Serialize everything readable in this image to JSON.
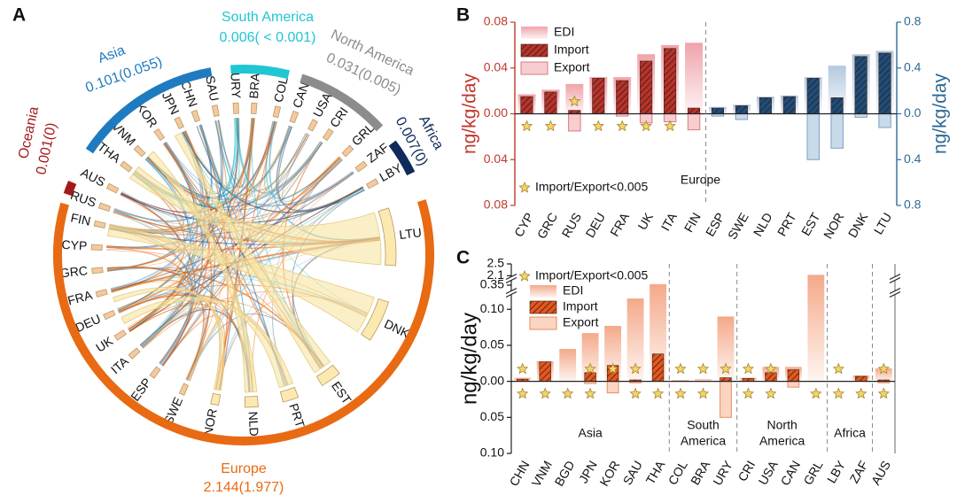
{
  "panel_labels": [
    "A",
    "B",
    "C"
  ],
  "chord": {
    "regions": [
      {
        "name": "Oceania",
        "label": "0.001(0)",
        "color": "#a5191c"
      },
      {
        "name": "Asia",
        "label": "0.101(0.055)",
        "color": "#1f7bc0"
      },
      {
        "name": "South America",
        "label": "0.006( < 0.001)",
        "color": "#1fc6d4"
      },
      {
        "name": "North America",
        "label": "0.031(0.005)",
        "color": "#8c8c8c"
      },
      {
        "name": "Africa",
        "label": "0.007(0)",
        "color": "#0f2a5c"
      },
      {
        "name": "Europe",
        "label": "2.144(1.977)",
        "color": "#e86a12"
      }
    ],
    "countries": [
      "LTU",
      "DNK",
      "EST",
      "PRT",
      "NLD",
      "NOR",
      "SWE",
      "ESP",
      "ITA",
      "UK",
      "DEU",
      "FRA",
      "GRC",
      "CYP",
      "FIN",
      "RUS",
      "AUS",
      "THA",
      "VNM",
      "KOR",
      "JPN",
      "CHN",
      "SAU",
      "URY",
      "BRA",
      "COL",
      "CAN",
      "USA",
      "CRI",
      "GRL",
      "ZAF",
      "LBY"
    ]
  },
  "chart_data": [
    {
      "type": "bar",
      "categories": [
        "CYP",
        "GRC",
        "RUS",
        "DEU",
        "FRA",
        "UK",
        "ITA",
        "FIN",
        "ESP",
        "SWE",
        "NLD",
        "PRT",
        "EST",
        "NOR",
        "DNK",
        "LTU"
      ],
      "category_axis": [
        "y",
        "y",
        "y",
        "y",
        "y",
        "y",
        "y",
        "y",
        "y2",
        "y2",
        "y2",
        "y2",
        "y2",
        "y2",
        "y2",
        "y2"
      ],
      "series": [
        {
          "name": "EDI",
          "color": "#f0a3aa",
          "color_y2": "#b3c8df",
          "values": [
            0.017,
            0.021,
            0.026,
            0.032,
            0.032,
            0.052,
            0.06,
            0.062,
            0.06,
            0.08,
            0.15,
            0.16,
            0.32,
            0.42,
            0.52,
            0.55
          ]
        },
        {
          "name": "Import",
          "color": "#b7332c",
          "color_y2": "#1f4e7a",
          "hatch": true,
          "values": [
            0.015,
            0.019,
            0.003,
            0.031,
            0.029,
            0.046,
            0.057,
            0.005,
            0.05,
            0.07,
            0.14,
            0.15,
            0.31,
            0.14,
            0.5,
            0.53
          ]
        },
        {
          "name": "Export",
          "color": "#f7cdd0",
          "color_y2": "#c9daeb",
          "values": [
            0,
            0,
            -0.015,
            0,
            -0.002,
            -0.008,
            -0.007,
            -0.014,
            -0.02,
            -0.05,
            0,
            0,
            -0.4,
            -0.3,
            -0.03,
            -0.12
          ]
        }
      ],
      "ylabel": "ng/kg/day",
      "y2label": "ng/kg/day",
      "ylim": [
        -0.08,
        0.08
      ],
      "yticks": [
        {
          "value": -0.08,
          "label": "0.08"
        },
        {
          "value": -0.04,
          "label": "0.04"
        },
        {
          "value": 0,
          "label": "0.00"
        },
        0.04,
        0.08
      ],
      "y2lim": [
        -0.8,
        0.8
      ],
      "y2ticks": [
        {
          "value": -0.8,
          "label": "0.8"
        },
        {
          "value": -0.4,
          "label": "0.4"
        },
        {
          "value": 0,
          "label": "0.0"
        },
        0.4,
        0.8
      ],
      "axis_color": "#c0392b",
      "axis2_color": "#2e6a94",
      "group_label": "Europe",
      "note": "Import/Export<0.005",
      "marked_import": [
        2
      ],
      "marked_export": [
        0,
        1,
        3,
        4,
        5,
        6
      ]
    },
    {
      "type": "bar",
      "categories": [
        "CHN",
        "VNM",
        "BGD",
        "JPN",
        "KOR",
        "SAU",
        "THA",
        "COL",
        "BRA",
        "URY",
        "CRI",
        "USA",
        "CAN",
        "GRL",
        "LBY",
        "ZAF",
        "AUS"
      ],
      "series": [
        {
          "name": "EDI",
          "color": "#f4a98a",
          "values": [
            0.005,
            0.028,
            0.045,
            0.067,
            0.077,
            0.115,
            0.354,
            0.002,
            0.003,
            0.09,
            0.005,
            0.02,
            0.02,
            2.13,
            0,
            0.008,
            0.018
          ]
        },
        {
          "name": "Import",
          "color": "#e4571e",
          "hatch": true,
          "values": [
            0.003,
            0.027,
            0,
            0.012,
            0.022,
            0.002,
            0.038,
            0,
            0,
            0.005,
            0.004,
            0.012,
            0.016,
            0,
            0,
            0.007,
            0.002
          ]
        },
        {
          "name": "Export",
          "color": "#fbd5c2",
          "values": [
            0,
            0,
            0,
            -0.003,
            -0.016,
            -0.002,
            0,
            0,
            0,
            -0.05,
            0,
            0,
            -0.008,
            0,
            0,
            0,
            -0.002
          ]
        }
      ],
      "ylabel": "ng/kg/day",
      "ylim": [
        -0.1,
        2.5
      ],
      "ybreaks": [
        [
          0.12,
          0.33
        ],
        [
          0.37,
          2.05
        ]
      ],
      "yticks": [
        {
          "value": -0.1,
          "label": "0.10"
        },
        {
          "value": -0.05,
          "label": "0.05"
        },
        {
          "value": 0,
          "label": "0.00"
        },
        0.05,
        {
          "value": 0.1,
          "label": "0.10"
        },
        0.35,
        2.1,
        2.5
      ],
      "note": "Import/Export<0.005",
      "groups": [
        {
          "name": [
            "Asia"
          ],
          "size": 7
        },
        {
          "name": [
            "South",
            "America"
          ],
          "size": 3
        },
        {
          "name": [
            "North",
            "America"
          ],
          "size": 4
        },
        {
          "name": [
            "Africa"
          ],
          "size": 2
        }
      ],
      "marked_import": [
        0,
        3,
        4,
        5,
        7,
        8,
        9,
        10,
        11,
        14,
        16
      ],
      "marked_export": [
        0,
        1,
        2,
        3,
        5,
        6,
        7,
        8,
        10,
        11,
        13,
        14,
        15,
        16
      ]
    }
  ]
}
